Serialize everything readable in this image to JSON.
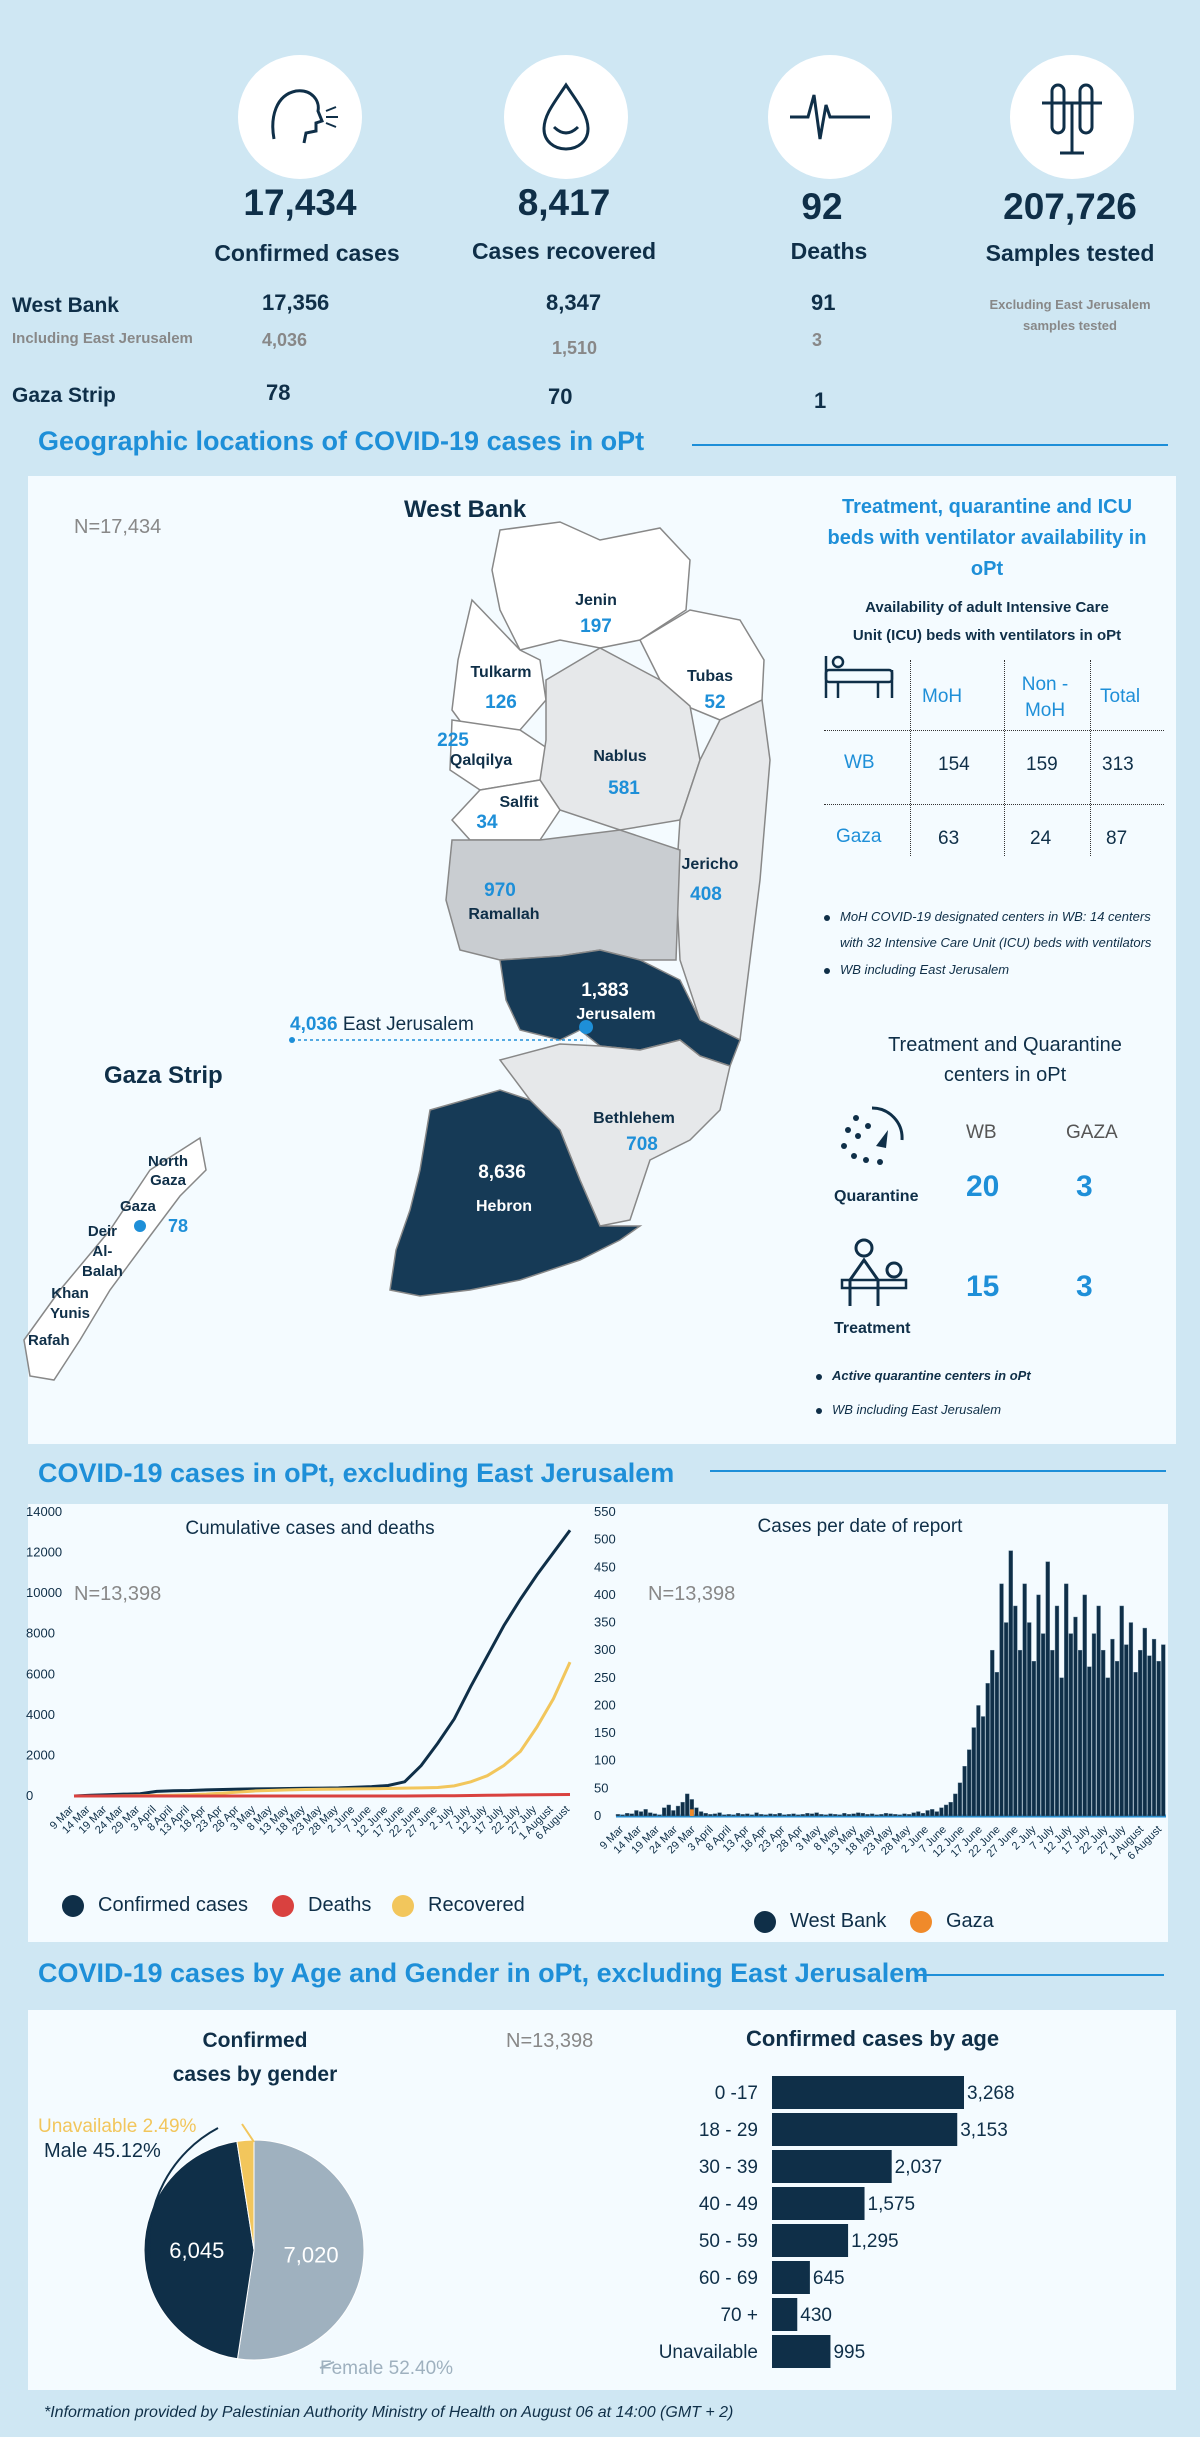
{
  "summary": {
    "confirmed": {
      "value": "17,434",
      "label": "Confirmed cases"
    },
    "recovered": {
      "value": "8,417",
      "label": "Cases recovered"
    },
    "deaths": {
      "value": "92",
      "label": "Deaths"
    },
    "samples": {
      "value": "207,726",
      "label": "Samples tested",
      "note_line1": "Excluding East Jerusalem",
      "note_line2": "samples tested"
    },
    "west_bank": {
      "label": "West Bank",
      "confirmed": "17,356",
      "recovered": "8,347",
      "deaths": "91"
    },
    "east_jerusalem": {
      "label": "Including East Jerusalem",
      "confirmed": "4,036",
      "recovered": "1,510",
      "deaths": "3"
    },
    "gaza": {
      "label": "Gaza Strip",
      "confirmed": "78",
      "recovered": "70",
      "deaths": "1"
    }
  },
  "geo": {
    "heading": "Geographic locations of COVID-19 cases in oPt",
    "n_label": "N=17,434",
    "west_bank_title": "West Bank",
    "gaza_title": "Gaza Strip",
    "regions": {
      "jenin": {
        "name": "Jenin",
        "value": "197"
      },
      "tulkarm": {
        "name": "Tulkarm",
        "value": "126"
      },
      "tubas": {
        "name": "Tubas",
        "value": "52"
      },
      "qalqilya": {
        "name": "Qalqilya",
        "value": "225"
      },
      "nablus": {
        "name": "Nablus",
        "value": "581"
      },
      "salfit": {
        "name": "Salfit",
        "value": "34"
      },
      "jericho": {
        "name": "Jericho",
        "value": "408"
      },
      "ramallah": {
        "name": "Ramallah",
        "value": "970"
      },
      "jerusalem": {
        "name": "Jerusalem",
        "value": "1,383"
      },
      "east_jerusalem": {
        "name": "East Jerusalem",
        "value": "4,036"
      },
      "bethlehem": {
        "name": "Bethlehem",
        "value": "708"
      },
      "hebron": {
        "name": "Hebron",
        "value": "8,636"
      }
    },
    "gaza_regions": {
      "north_gaza": {
        "line1": "North",
        "line2": "Gaza"
      },
      "gaza": {
        "name": "Gaza",
        "value": "78"
      },
      "deir_al_balah": {
        "line1": "Deir",
        "line2": "Al-",
        "line3": "Balah"
      },
      "khan_yunis": {
        "line1": "Khan",
        "line2": "Yunis"
      },
      "rafah": {
        "name": "Rafah"
      }
    }
  },
  "icu": {
    "title_line1": "Treatment, quarantine and ICU",
    "title_line2": "beds with ventilator availability in",
    "title_line3": "oPt",
    "subtitle_line1": "Availability of adult Intensive Care",
    "subtitle_line2": "Unit (ICU) beds with ventilators in oPt",
    "col_moh": "MoH",
    "col_nonmoh_line1": "Non -",
    "col_nonmoh_line2": "MoH",
    "col_total": "Total",
    "rows": [
      {
        "label": "WB",
        "moh": "154",
        "nonmoh": "159",
        "total": "313"
      },
      {
        "label": "Gaza",
        "moh": "63",
        "nonmoh": "24",
        "total": "87"
      }
    ],
    "note1_line1": "MoH COVID-19 designated centers in WB:  14 centers",
    "note1_line2": "with 32 Intensive Care Unit (ICU) beds with ventilators",
    "note2": "WB including East Jerusalem"
  },
  "centers": {
    "title_line1": "Treatment and Quarantine",
    "title_line2": "centers in oPt",
    "col_wb": "WB",
    "col_gaza": "GAZA",
    "quarantine": {
      "label": "Quarantine",
      "wb": "20",
      "gaza": "3"
    },
    "treatment": {
      "label": "Treatment",
      "wb": "15",
      "gaza": "3"
    },
    "note1": "Active quarantine centers in oPt",
    "note2": "WB including East Jerusalem"
  },
  "cases_section": {
    "heading": "COVID-19 cases in oPt, excluding East Jerusalem"
  },
  "age_section": {
    "heading": "COVID-19 cases by Age and Gender in oPt, excluding East Jerusalem"
  },
  "footer": "*Information provided by Palestinian Authority Ministry of Health on August 06 at 14:00 (GMT + 2)",
  "colors": {
    "navy": "#0f2f48",
    "blue": "#1e8fd8",
    "red": "#d9413f",
    "yellow": "#f2c65c",
    "orange": "#f08a2a",
    "grey": "#9fb1bf"
  },
  "chart_data": [
    {
      "type": "line",
      "title": "Cumulative cases and deaths",
      "n_label": "N=13,398",
      "ylim": [
        0,
        14000
      ],
      "yticks": [
        "0",
        "2000",
        "4000",
        "6000",
        "8000",
        "10000",
        "12000",
        "14000"
      ],
      "x_labels": [
        "9 Mar",
        "14 Mar",
        "19 Mar",
        "24 Mar",
        "29 Mar",
        "3 April",
        "8 April",
        "13 April",
        "18 Apr",
        "23 Apr",
        "28 Apr",
        "3 May",
        "8 May",
        "13 May",
        "18 May",
        "23 May",
        "28 May",
        "2 June",
        "7 June",
        "12 June",
        "17 June",
        "22 June",
        "27 June",
        "2 July",
        "7 July",
        "12 July",
        "17 July",
        "22 July",
        "27 July",
        "1 August",
        "6 August"
      ],
      "series": [
        {
          "name": "Confirmed cases",
          "values": [
            0,
            40,
            60,
            90,
            110,
            230,
            260,
            270,
            300,
            320,
            340,
            350,
            355,
            370,
            380,
            390,
            400,
            430,
            460,
            520,
            700,
            1500,
            2600,
            3800,
            5400,
            6900,
            8400,
            9700,
            10900,
            12000,
            13100
          ]
        },
        {
          "name": "Deaths",
          "values": [
            0,
            0,
            0,
            0,
            0,
            1,
            1,
            1,
            1,
            2,
            2,
            2,
            2,
            2,
            2,
            2,
            2,
            2,
            2,
            3,
            3,
            5,
            10,
            15,
            25,
            35,
            45,
            55,
            62,
            68,
            75
          ]
        },
        {
          "name": "Recovered",
          "values": [
            0,
            0,
            0,
            10,
            20,
            30,
            40,
            60,
            90,
            140,
            200,
            250,
            280,
            300,
            320,
            330,
            340,
            350,
            360,
            370,
            390,
            400,
            420,
            500,
            700,
            1000,
            1500,
            2200,
            3400,
            4800,
            6600
          ]
        }
      ]
    },
    {
      "type": "bar",
      "title": "Cases per date of report",
      "n_label": "N=13,398",
      "ylim": [
        0,
        550
      ],
      "yticks": [
        "0",
        "50",
        "100",
        "150",
        "200",
        "250",
        "300",
        "350",
        "400",
        "450",
        "500",
        "550"
      ],
      "x_labels": [
        "9 Mar",
        "14 Mar",
        "19 Mar",
        "24 Mar",
        "29 Mar",
        "3 April",
        "8 April",
        "13 Apr",
        "18 Apr",
        "23 Apr",
        "28 Apr",
        "3 May",
        "8 May",
        "13 May",
        "18 May",
        "23 May",
        "28 May",
        "2 June",
        "7 June",
        "12 June",
        "17 June",
        "22 June",
        "27 June",
        "2 July",
        "7 July",
        "12 July",
        "17 July",
        "22 July",
        "27 July",
        "1 August",
        "6 August"
      ],
      "series": [
        {
          "name": "West Bank",
          "values": [
            3,
            2,
            5,
            4,
            10,
            8,
            12,
            6,
            4,
            2,
            15,
            20,
            10,
            18,
            25,
            40,
            30,
            15,
            8,
            5,
            3,
            4,
            6,
            2,
            3,
            2,
            5,
            3,
            4,
            2,
            6,
            3,
            2,
            4,
            3,
            5,
            2,
            3,
            4,
            2,
            3,
            5,
            4,
            6,
            3,
            2,
            4,
            3,
            2,
            5,
            3,
            4,
            6,
            5,
            3,
            4,
            2,
            3,
            5,
            4,
            3,
            2,
            4,
            3,
            6,
            8,
            5,
            10,
            12,
            8,
            15,
            20,
            25,
            40,
            60,
            90,
            120,
            160,
            200,
            180,
            240,
            300,
            260,
            420,
            350,
            480,
            380,
            300,
            420,
            350,
            280,
            400,
            330,
            460,
            300,
            380,
            250,
            420,
            330,
            360,
            300,
            400,
            270,
            330,
            380,
            300,
            250,
            320,
            280,
            380,
            310,
            350,
            260,
            300,
            340,
            290,
            320,
            280,
            310
          ]
        },
        {
          "name": "Gaza",
          "values": [
            0,
            0,
            0,
            0,
            0,
            0,
            0,
            0,
            0,
            0,
            0,
            0,
            0,
            0,
            0,
            0,
            12,
            0,
            0,
            0,
            0,
            0,
            0,
            0,
            0,
            0,
            0,
            0,
            0,
            0,
            0,
            0,
            0,
            0,
            0,
            0,
            0,
            0,
            0,
            0,
            0,
            0,
            0,
            0,
            0,
            0,
            0,
            0,
            0,
            0,
            0,
            0,
            0,
            0,
            0,
            0,
            0,
            0,
            0,
            0,
            0,
            0,
            0,
            0,
            0,
            0,
            0,
            0,
            0,
            0,
            0,
            0,
            0,
            0,
            0,
            0,
            0,
            0,
            0,
            0,
            0,
            0,
            0,
            0,
            0,
            0,
            0,
            0,
            0,
            0,
            0,
            0,
            0,
            0,
            0,
            0,
            0,
            0,
            0,
            0,
            0,
            0,
            0,
            0,
            0,
            0,
            0,
            0,
            0,
            0,
            0,
            0,
            0,
            0,
            0,
            0,
            0,
            0,
            0
          ]
        }
      ]
    },
    {
      "type": "pie",
      "title_line1": "Confirmed",
      "title_line2": "cases by gender",
      "n_label": "N=13,398",
      "slices": [
        {
          "name": "Female",
          "value": 7020,
          "label": "7,020",
          "pct_label": "Female 52.40%"
        },
        {
          "name": "Male",
          "value": 6045,
          "label": "6,045",
          "pct_label": "Male 45.12%"
        },
        {
          "name": "Unavailable",
          "value": 333,
          "label": "",
          "pct_label": "Unavailable 2.49%"
        }
      ]
    },
    {
      "type": "bar",
      "orientation": "horizontal",
      "title": "Confirmed cases by age",
      "categories": [
        "0 -17",
        "18 - 29",
        "30 - 39",
        "40 - 49",
        "50 - 59",
        "60 - 69",
        "70 +",
        "Unavailable"
      ],
      "values": [
        3268,
        3153,
        2037,
        1575,
        1295,
        645,
        430,
        995
      ],
      "value_labels": [
        "3,268",
        "3,153",
        "2,037",
        "1,575",
        "1,295",
        "645",
        "430",
        "995"
      ],
      "xlim": [
        0,
        3268
      ]
    }
  ],
  "legends": {
    "line": [
      "Confirmed cases",
      "Deaths",
      "Recovered"
    ],
    "bar": [
      "West Bank",
      "Gaza"
    ]
  }
}
